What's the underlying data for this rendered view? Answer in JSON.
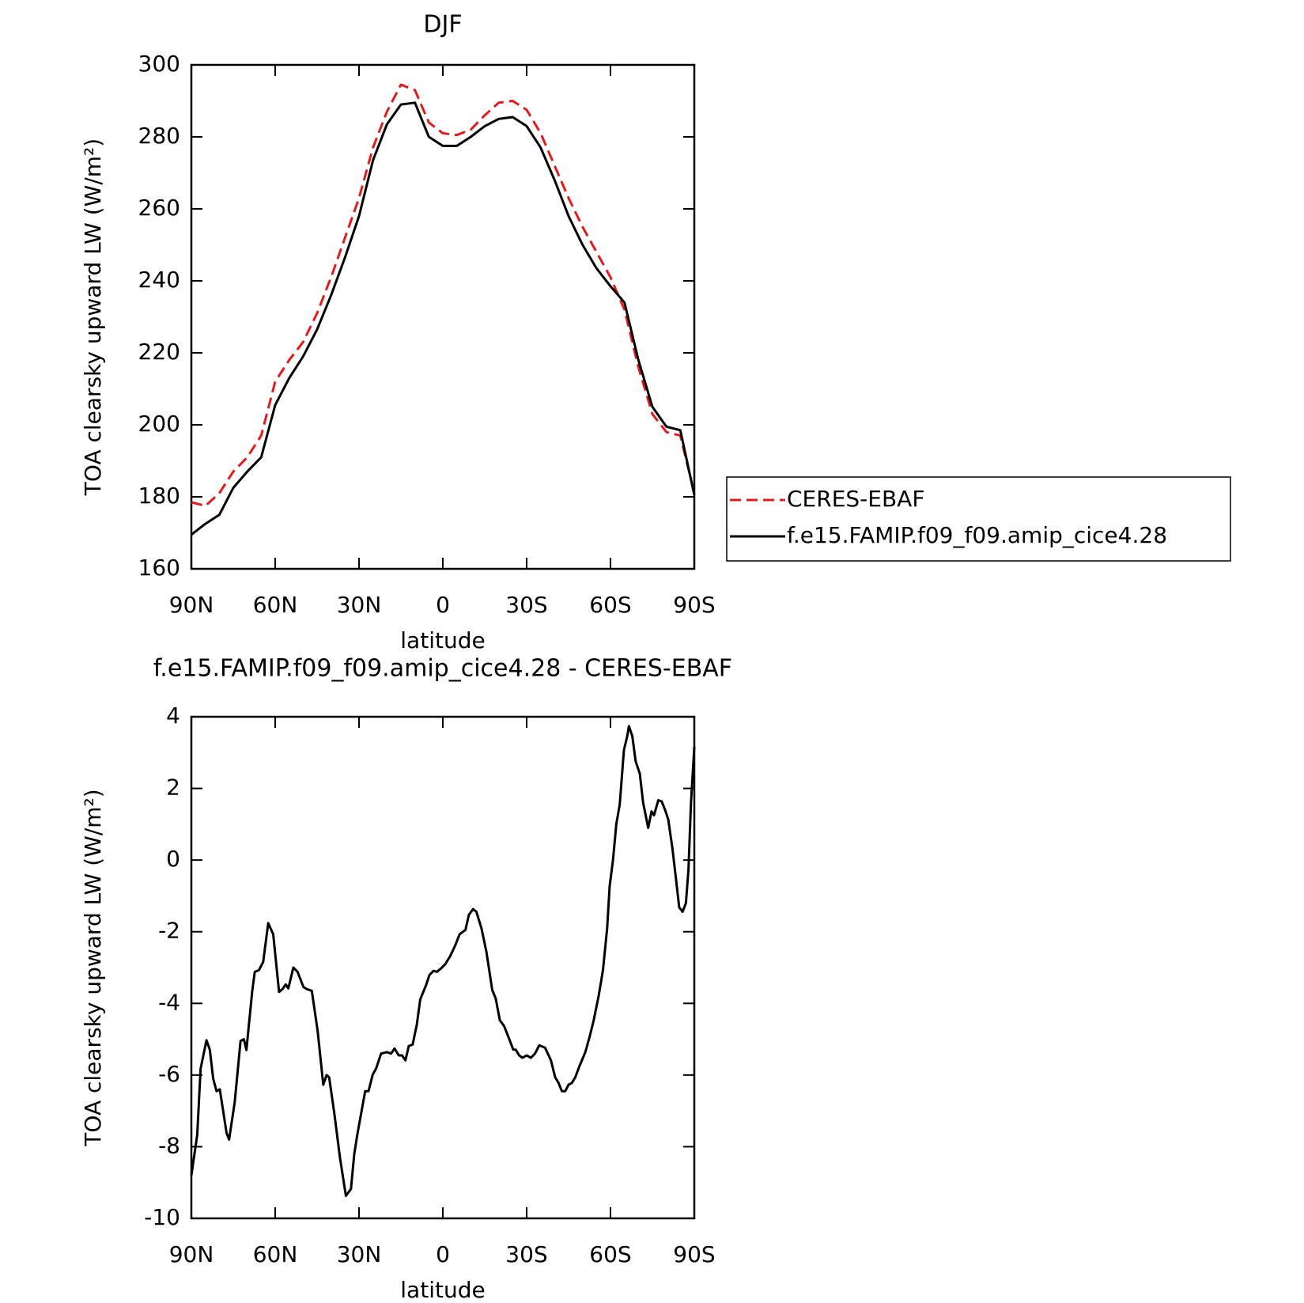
{
  "chart_data": [
    {
      "type": "line",
      "title": "DJF",
      "xlabel": "latitude",
      "ylabel": "TOA clearsky upward LW (W/m²)",
      "x": [
        90,
        85,
        80,
        75,
        70,
        65,
        60,
        55,
        50,
        45,
        40,
        35,
        30,
        25,
        20,
        15,
        10,
        5,
        0,
        -5,
        -10,
        -15,
        -20,
        -25,
        -30,
        -35,
        -40,
        -45,
        -50,
        -55,
        -60,
        -65,
        -70,
        -75,
        -80,
        -85,
        -90
      ],
      "series": [
        {
          "name": "CERES-EBAF",
          "color": "#e41a1c",
          "dashed": true,
          "values": [
            178.5,
            177.5,
            181,
            187,
            191,
            197,
            212,
            218,
            223,
            231,
            241,
            252,
            263,
            277,
            287,
            294.5,
            293,
            284,
            281,
            280.5,
            282,
            286,
            289.5,
            290,
            287.5,
            281,
            272,
            263,
            255,
            248,
            241,
            232,
            216,
            203,
            198,
            197,
            181
          ]
        },
        {
          "name": "f.e15.FAMIP.f09_f09.amip_cice4.28",
          "color": "#000000",
          "dashed": false,
          "values": [
            169.5,
            172.5,
            175,
            182.5,
            187,
            191,
            205.5,
            213,
            219,
            226.5,
            236,
            246.5,
            258,
            273.5,
            283.5,
            289,
            289.5,
            280,
            277.5,
            277.5,
            280,
            283,
            285,
            285.5,
            283,
            277,
            268,
            258,
            250,
            243.5,
            238.5,
            234,
            218,
            205,
            199.5,
            198.5,
            180.5
          ]
        }
      ],
      "xlim": [
        90,
        -90
      ],
      "xticks": [
        {
          "value": 90,
          "label": "90N"
        },
        {
          "value": 60,
          "label": "60N"
        },
        {
          "value": 30,
          "label": "30N"
        },
        0,
        {
          "value": -30,
          "label": "30S"
        },
        {
          "value": -60,
          "label": "60S"
        },
        {
          "value": -90,
          "label": "90S"
        }
      ],
      "ylim": [
        160,
        300
      ],
      "yticks": [
        160,
        180,
        200,
        220,
        240,
        260,
        280,
        300
      ],
      "legend": "right"
    },
    {
      "type": "line",
      "title": "f.e15.FAMIP.f09_f09.amip_cice4.28 - CERES-EBAF",
      "xlabel": "latitude",
      "ylabel": "TOA clearsky upward LW (W/m²)",
      "x": [
        90,
        87.9,
        86.7,
        84.6,
        83.4,
        82.2,
        81,
        79.8,
        77.4,
        76.5,
        74.5,
        72.4,
        71.2,
        70.3,
        68.2,
        67.3,
        65.8,
        64.3,
        62.5,
        60.7,
        58.6,
        57.4,
        56.2,
        55.3,
        53.5,
        52,
        49.9,
        48.7,
        46.9,
        44.8,
        42.8,
        41.6,
        40.7,
        38.9,
        36.8,
        34.7,
        32.9,
        31.7,
        30.5,
        27.8,
        26.6,
        25.1,
        23.9,
        22.1,
        20,
        18.5,
        17.3,
        15.8,
        14.6,
        13.4,
        12.2,
        10.8,
        9.3,
        8.1,
        6,
        4.8,
        3.3,
        2.1,
        0.6,
        -0.9,
        -2.7,
        -4.5,
        -6,
        -8.1,
        -9.3,
        -10.8,
        -12,
        -13.8,
        -15.6,
        -17.7,
        -18.9,
        -20.4,
        -21.9,
        -23.7,
        -25.2,
        -26.1,
        -27.3,
        -28.5,
        -30,
        -31.5,
        -33,
        -34.5,
        -36.6,
        -38.7,
        -40.2,
        -41.4,
        -42.6,
        -43.8,
        -45,
        -46.2,
        -47.4,
        -48.9,
        -51,
        -52.5,
        -54,
        -55.8,
        -57.3,
        -58.8,
        -59.7,
        -60.9,
        -62.1,
        -63.3,
        -64.8,
        -66,
        -66.6,
        -67.8,
        -69,
        -70.5,
        -71.7,
        -73.5,
        -74.7,
        -75.6,
        -77.1,
        -78.3,
        -79.5,
        -80.7,
        -82.2,
        -83.4,
        -84.6,
        -85.8,
        -87,
        -87.9,
        -88.8,
        -90
      ],
      "series": [
        {
          "color": "#000000",
          "values": [
            -8.8,
            -7.67,
            -5.82,
            -5.03,
            -5.29,
            -6.1,
            -6.45,
            -6.4,
            -7.62,
            -7.8,
            -6.76,
            -5.05,
            -5,
            -5.3,
            -3.65,
            -3.12,
            -3.07,
            -2.84,
            -1.76,
            -2.07,
            -3.68,
            -3.6,
            -3.47,
            -3.58,
            -3,
            -3.12,
            -3.54,
            -3.6,
            -3.65,
            -4.77,
            -6.27,
            -6,
            -6.06,
            -7.04,
            -8.32,
            -9.37,
            -9.18,
            -8.2,
            -7.62,
            -6.45,
            -6.45,
            -5.99,
            -5.82,
            -5.4,
            -5.36,
            -5.4,
            -5.26,
            -5.45,
            -5.45,
            -5.59,
            -5.19,
            -5.15,
            -4.59,
            -3.89,
            -3.49,
            -3.21,
            -3.09,
            -3.12,
            -3.02,
            -2.9,
            -2.67,
            -2.37,
            -2.07,
            -1.95,
            -1.53,
            -1.37,
            -1.44,
            -1.9,
            -2.56,
            -3.63,
            -3.86,
            -4.47,
            -4.63,
            -4.98,
            -5.29,
            -5.29,
            -5.45,
            -5.52,
            -5.45,
            -5.52,
            -5.4,
            -5.17,
            -5.24,
            -5.59,
            -6.06,
            -6.22,
            -6.45,
            -6.45,
            -6.27,
            -6.22,
            -6.06,
            -5.75,
            -5.36,
            -4.94,
            -4.47,
            -3.77,
            -3.07,
            -1.9,
            -0.74,
            0.01,
            1.01,
            1.55,
            3.07,
            3.46,
            3.74,
            3.46,
            2.76,
            2.41,
            1.6,
            0.9,
            1.36,
            1.25,
            1.67,
            1.64,
            1.41,
            1.13,
            0.31,
            -0.5,
            -1.32,
            -1.44,
            -1.2,
            -0.27,
            1.6,
            3.16
          ]
        }
      ],
      "xlim": [
        90,
        -90
      ],
      "xticks": [
        {
          "value": 90,
          "label": "90N"
        },
        {
          "value": 60,
          "label": "60N"
        },
        {
          "value": 30,
          "label": "30N"
        },
        0,
        {
          "value": -30,
          "label": "30S"
        },
        {
          "value": -60,
          "label": "60S"
        },
        {
          "value": -90,
          "label": "90S"
        }
      ],
      "ylim": [
        -10,
        4
      ],
      "yticks": [
        -10,
        -8,
        -6,
        -4,
        -2,
        0,
        2,
        4
      ]
    }
  ]
}
